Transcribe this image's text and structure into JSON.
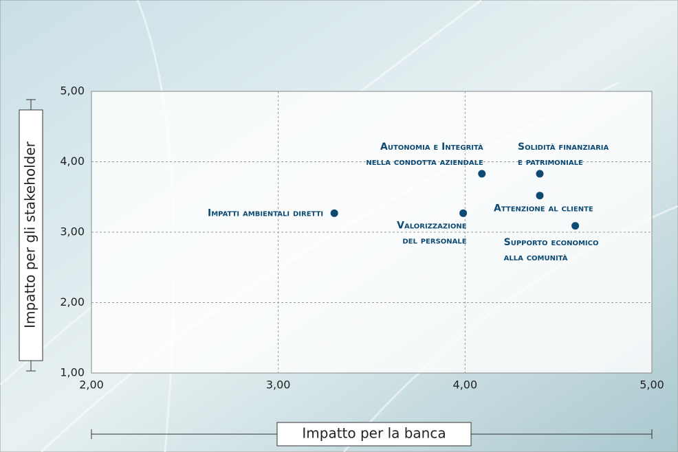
{
  "chart_data": {
    "type": "scatter",
    "x_label": "Impatto per la banca",
    "y_label": "Impatto per gli stakeholder",
    "x": [
      3.3,
      3.99,
      4.09,
      4.4,
      4.4,
      4.59
    ],
    "values": [
      3.27,
      3.27,
      3.83,
      3.83,
      3.52,
      3.09
    ],
    "point_labels": [
      [
        "Impatti ambientali diretti"
      ],
      [
        "Valorizzazione",
        "del personale"
      ],
      [
        "Autonomia e Integrità",
        "nella condotta aziendale"
      ],
      [
        "Solidità finanziaria",
        "e patrimoniale"
      ],
      [
        "Attenzione al cliente"
      ],
      [
        "Supporto economico",
        "alla comunità"
      ]
    ],
    "color": "#0d4a73",
    "xlim": [
      2,
      5
    ],
    "ylim": [
      1,
      5
    ],
    "xticks": [
      {
        "value": 2,
        "label": "2,00"
      },
      {
        "value": 3,
        "label": "3,00"
      },
      {
        "value": 4,
        "label": "4,00"
      },
      {
        "value": 5,
        "label": "5,00"
      }
    ],
    "yticks": [
      {
        "value": 1,
        "label": "1,00"
      },
      {
        "value": 2,
        "label": "2,00"
      },
      {
        "value": 3,
        "label": "3,00"
      },
      {
        "value": 4,
        "label": "4,00"
      },
      {
        "value": 5,
        "label": "5,00"
      }
    ],
    "grid": true
  }
}
